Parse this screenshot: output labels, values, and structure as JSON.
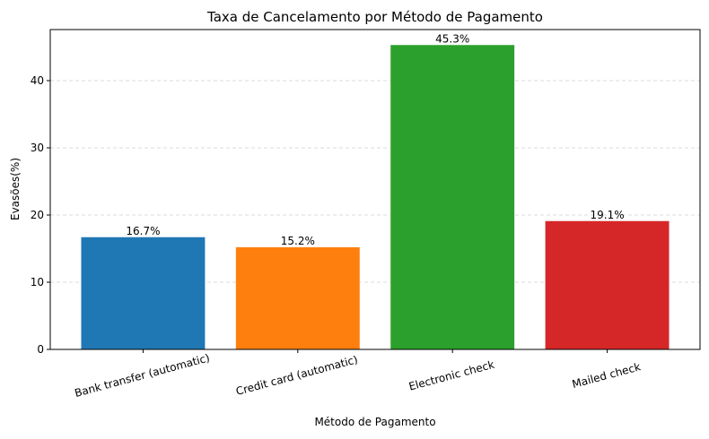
{
  "chart_data": {
    "type": "bar",
    "title": "Taxa de Cancelamento por Método de Pagamento",
    "xlabel": "Método de Pagamento",
    "ylabel": "Evasões(%)",
    "categories": [
      "Bank transfer (automatic)",
      "Credit card (automatic)",
      "Electronic check",
      "Mailed check"
    ],
    "values": [
      16.7,
      15.2,
      45.3,
      19.1
    ],
    "data_labels": [
      "16.7%",
      "15.2%",
      "45.3%",
      "19.1%"
    ],
    "colors": [
      "#1f77b4",
      "#ff7f0e",
      "#2ca02c",
      "#d62728"
    ],
    "ylim": [
      0,
      47.6
    ],
    "yticks": [
      0,
      10,
      20,
      30,
      40
    ],
    "grid": "y-dashed",
    "legend": "none"
  }
}
